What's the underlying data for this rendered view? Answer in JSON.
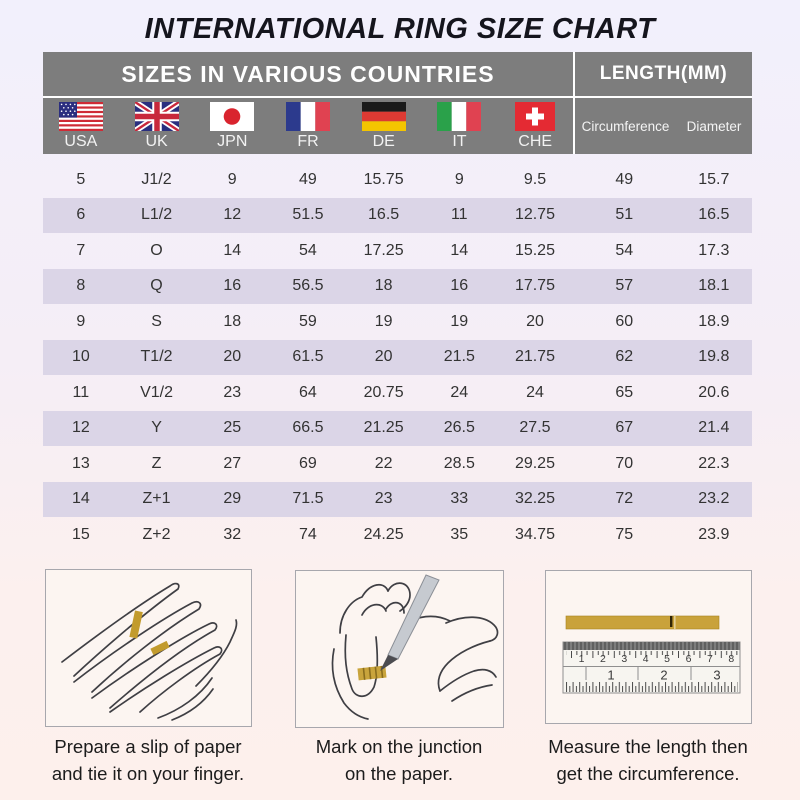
{
  "title": "INTERNATIONAL RING SIZE CHART",
  "table": {
    "section_headers": {
      "countries": "SIZES IN VARIOUS COUNTRIES",
      "length": "LENGTH(MM)"
    }
  },
  "chart_data": {
    "type": "table",
    "title": "INTERNATIONAL RING SIZE CHART",
    "columns": [
      "USA",
      "UK",
      "JPN",
      "FR",
      "DE",
      "IT",
      "CHE",
      "Circumference",
      "Diameter"
    ],
    "rows": [
      [
        "5",
        "J1/2",
        "9",
        "49",
        "15.75",
        "9",
        "9.5",
        "49",
        "15.7"
      ],
      [
        "6",
        "L1/2",
        "12",
        "51.5",
        "16.5",
        "11",
        "12.75",
        "51",
        "16.5"
      ],
      [
        "7",
        "O",
        "14",
        "54",
        "17.25",
        "14",
        "15.25",
        "54",
        "17.3"
      ],
      [
        "8",
        "Q",
        "16",
        "56.5",
        "18",
        "16",
        "17.75",
        "57",
        "18.1"
      ],
      [
        "9",
        "S",
        "18",
        "59",
        "19",
        "19",
        "20",
        "60",
        "18.9"
      ],
      [
        "10",
        "T1/2",
        "20",
        "61.5",
        "20",
        "21.5",
        "21.75",
        "62",
        "19.8"
      ],
      [
        "11",
        "V1/2",
        "23",
        "64",
        "20.75",
        "24",
        "24",
        "65",
        "20.6"
      ],
      [
        "12",
        "Y",
        "25",
        "66.5",
        "21.25",
        "26.5",
        "27.5",
        "67",
        "21.4"
      ],
      [
        "13",
        "Z",
        "27",
        "69",
        "22",
        "28.5",
        "29.25",
        "70",
        "22.3"
      ],
      [
        "14",
        "Z+1",
        "29",
        "71.5",
        "23",
        "33",
        "32.25",
        "72",
        "23.2"
      ],
      [
        "15",
        "Z+2",
        "32",
        "74",
        "24.25",
        "35",
        "34.75",
        "75",
        "23.9"
      ]
    ]
  },
  "instructions": [
    {
      "icon": "hand-with-paper-slip-illustration",
      "caption": [
        "Prepare a slip of paper",
        "and tie it on your finger."
      ]
    },
    {
      "icon": "pen-marking-illustration",
      "caption": [
        "Mark on the junction",
        "on the paper."
      ]
    },
    {
      "icon": "ruler-measure-illustration",
      "caption": [
        "Measure the length then",
        "get the circumference."
      ],
      "ruler": {
        "top_scale": [
          "1",
          "2",
          "3",
          "4",
          "5",
          "6",
          "7",
          "8"
        ],
        "bottom_scale": [
          "1",
          "2",
          "3"
        ]
      }
    }
  ],
  "colors": {
    "header_gray": "#7d7d7d",
    "row_shade": "#dbd5e7",
    "gold": "#c9a23b",
    "title_color": "#15151d"
  }
}
